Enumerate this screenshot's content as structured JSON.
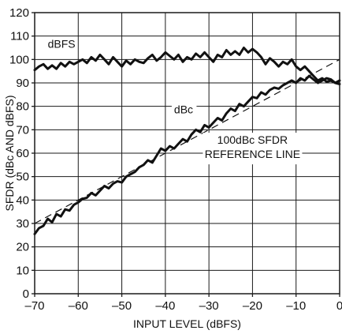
{
  "chart_data": {
    "type": "line",
    "title": "",
    "xlabel": "INPUT LEVEL (dBFS)",
    "ylabel": "SFDR (dBc AND dBFS)",
    "xlim": [
      -70,
      0
    ],
    "ylim": [
      0,
      120
    ],
    "x_ticks": [
      -70,
      -60,
      -50,
      -40,
      -30,
      -20,
      -10,
      0
    ],
    "x_tick_labels": [
      "–70",
      "–60",
      "–50",
      "–40",
      "–30",
      "–20",
      "–10",
      "0"
    ],
    "y_ticks": [
      0,
      10,
      20,
      30,
      40,
      50,
      60,
      70,
      80,
      90,
      100,
      110,
      120
    ],
    "y_tick_labels": [
      "0",
      "10",
      "20",
      "30",
      "40",
      "50",
      "60",
      "70",
      "80",
      "90",
      "100",
      "110",
      "120"
    ],
    "grid": true,
    "series": [
      {
        "name": "dBFS",
        "x": [
          -70,
          -69,
          -68,
          -67,
          -66,
          -65,
          -64,
          -63,
          -62,
          -61,
          -60,
          -59,
          -58,
          -57,
          -56,
          -55,
          -54,
          -53,
          -52,
          -51,
          -50,
          -49,
          -48,
          -47,
          -46,
          -45,
          -44,
          -43,
          -42,
          -41,
          -40,
          -39,
          -38,
          -37,
          -36,
          -35,
          -34,
          -33,
          -32,
          -31,
          -30,
          -29,
          -28,
          -27,
          -26,
          -25,
          -24,
          -23,
          -22,
          -21,
          -20,
          -19,
          -18,
          -17,
          -16,
          -15,
          -14,
          -13,
          -12,
          -11,
          -10,
          -9,
          -8,
          -7,
          -6,
          -5,
          -4,
          -3,
          -2,
          -1,
          0
        ],
        "values": [
          95.5,
          97,
          98,
          96,
          97.5,
          96,
          98.5,
          97,
          99,
          98,
          99,
          100,
          98.5,
          101,
          99.5,
          102,
          100,
          98,
          101,
          99,
          97,
          99.5,
          98,
          100,
          99,
          98.5,
          100.5,
          102,
          99.5,
          101,
          103,
          101.5,
          100,
          102,
          99,
          101,
          100,
          102.5,
          101,
          103,
          101,
          99,
          102,
          101,
          104,
          102,
          103.5,
          102,
          105,
          103,
          104.5,
          103,
          101,
          98,
          100.5,
          99,
          97,
          99,
          98,
          100,
          97,
          95.5,
          97,
          95,
          93,
          91,
          92,
          90.5,
          91,
          90,
          89.5
        ]
      },
      {
        "name": "dBc",
        "x": [
          -70,
          -69,
          -68,
          -67,
          -66,
          -65,
          -64,
          -63,
          -62,
          -61,
          -60,
          -59,
          -58,
          -57,
          -56,
          -55,
          -54,
          -53,
          -52,
          -51,
          -50,
          -49,
          -48,
          -47,
          -46,
          -45,
          -44,
          -43,
          -42,
          -41,
          -40,
          -39,
          -38,
          -37,
          -36,
          -35,
          -34,
          -33,
          -32,
          -31,
          -30,
          -29,
          -28,
          -27,
          -26,
          -25,
          -24,
          -23,
          -22,
          -21,
          -20,
          -19,
          -18,
          -17,
          -16,
          -15,
          -14,
          -13,
          -12,
          -11,
          -10,
          -9,
          -8,
          -7,
          -6,
          -5,
          -4,
          -3,
          -2,
          -1,
          0
        ],
        "values": [
          25.5,
          28,
          29,
          32,
          30.5,
          34,
          33,
          36,
          35.5,
          38,
          39,
          40.5,
          41,
          43,
          42,
          44,
          46,
          45,
          47,
          48,
          47.5,
          50,
          51,
          52,
          54,
          55,
          57,
          56,
          59,
          62,
          61,
          63,
          62,
          64,
          66,
          65,
          68,
          70,
          69,
          72,
          71,
          73,
          75,
          74,
          77,
          79,
          78,
          81,
          80,
          82,
          84,
          83.5,
          86,
          85,
          87,
          88,
          87.5,
          89,
          90,
          91,
          90,
          92,
          91,
          93,
          91.5,
          90,
          91,
          92,
          91.5,
          90,
          91
        ]
      },
      {
        "name": "100dBc SFDR REFERENCE LINE",
        "x": [
          -70,
          0
        ],
        "values": [
          30,
          100
        ],
        "style": "dashed"
      }
    ],
    "annotations": [
      {
        "text": "dBFS",
        "x": -67,
        "y": 105
      },
      {
        "text": "dBc",
        "x": -38,
        "y": 77
      },
      {
        "text_lines": [
          "100dBc SFDR",
          "REFERENCE LINE"
        ],
        "x": -20,
        "y": 64
      }
    ]
  }
}
